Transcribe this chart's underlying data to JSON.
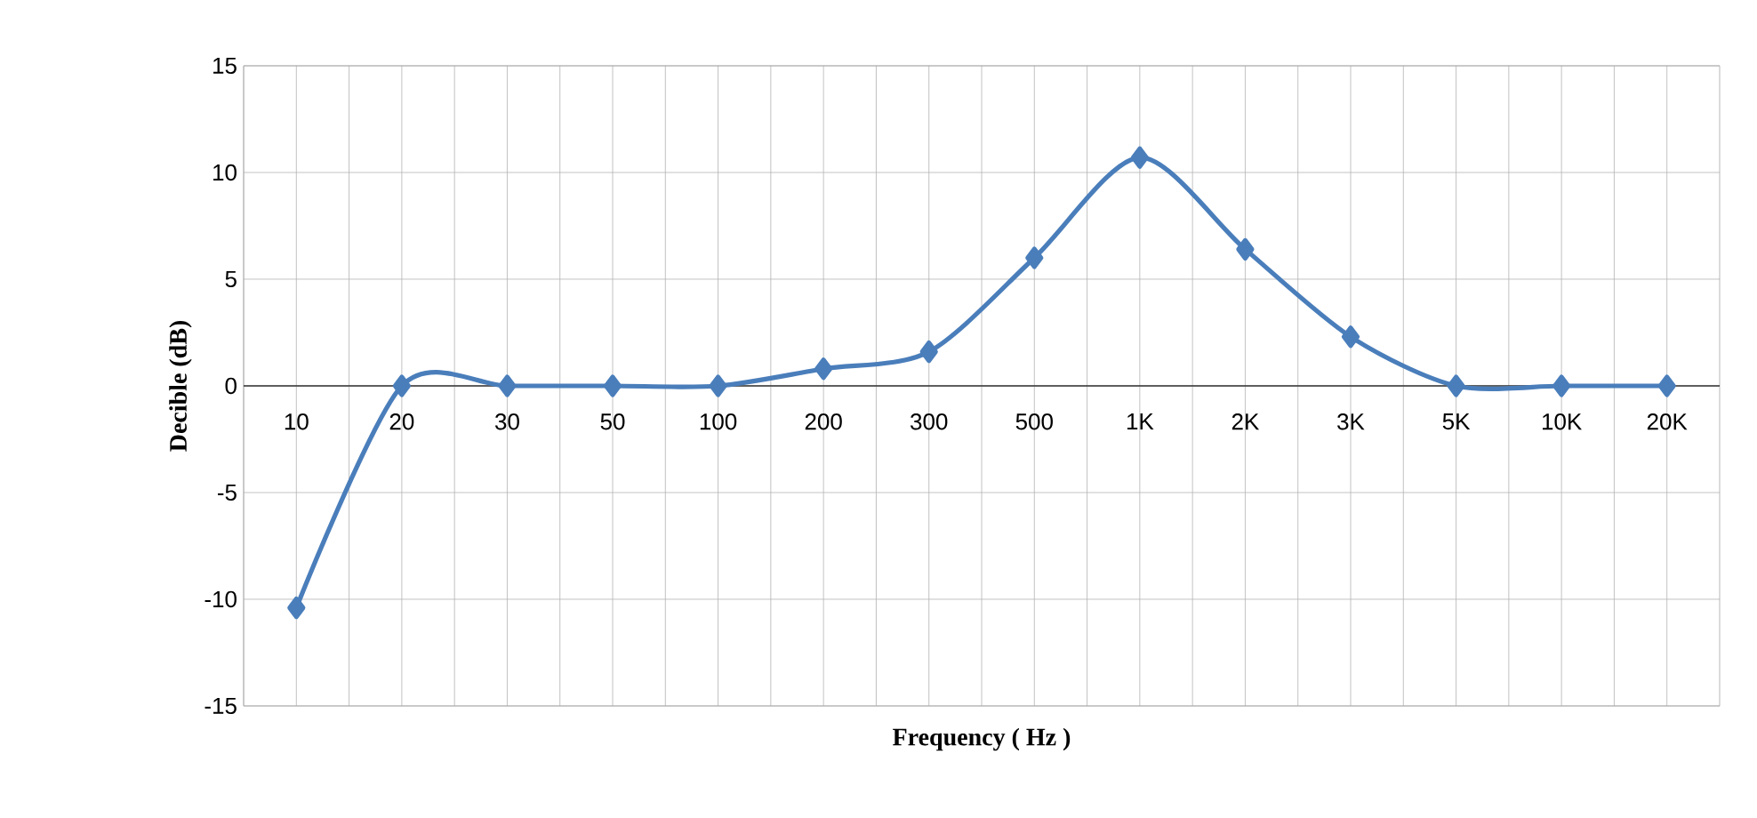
{
  "chart_data": {
    "type": "line",
    "xlabel": "Frequency ( Hz )",
    "ylabel": "Decible (dB)",
    "categories": [
      "10",
      "20",
      "30",
      "50",
      "100",
      "200",
      "300",
      "500",
      "1K",
      "2K",
      "3K",
      "5K",
      "10K",
      "20K"
    ],
    "series": [
      {
        "color": "#4a7ebb",
        "values": [
          -10.4,
          0,
          0,
          0,
          0,
          0.8,
          1.6,
          6,
          10.7,
          6.4,
          2.3,
          0,
          0,
          0
        ]
      }
    ],
    "ylim": [
      -15,
      15
    ],
    "yticks": [
      -15,
      -10,
      -5,
      0,
      5,
      10,
      15
    ],
    "grid": true,
    "marker": "diamond",
    "line_style": "solid"
  }
}
